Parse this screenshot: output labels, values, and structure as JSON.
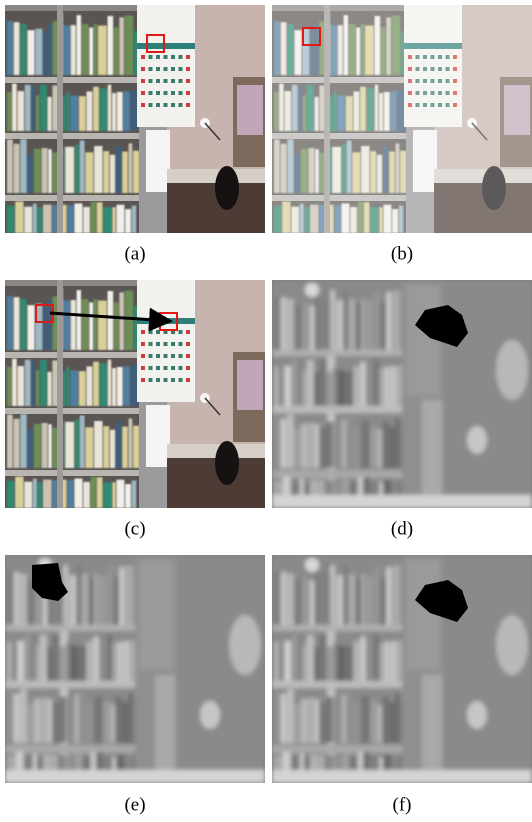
{
  "figure": {
    "captions": [
      "(a)",
      "(b)",
      "(c)",
      "(d)",
      "(e)",
      "(f)"
    ]
  }
}
